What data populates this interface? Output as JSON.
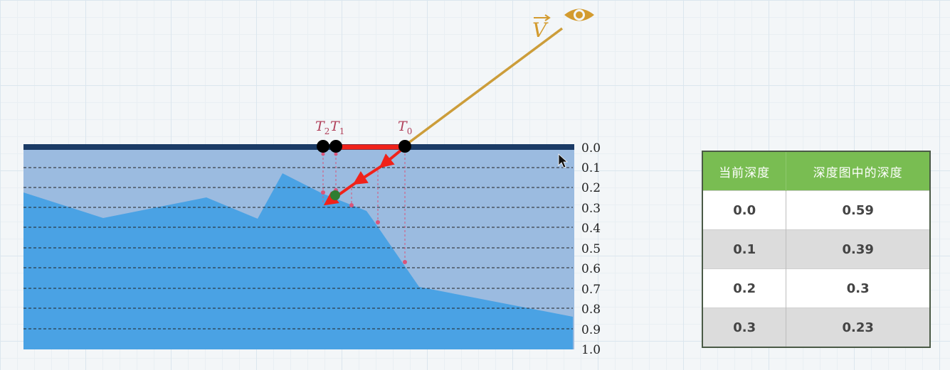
{
  "depth_labels": [
    "0.0",
    "0.1",
    "0.2",
    "0.3",
    "0.4",
    "0.5",
    "0.6",
    "0.7",
    "0.8",
    "0.9",
    "1.0"
  ],
  "points": {
    "t0": {
      "base": "T",
      "sub": "0"
    },
    "t1": {
      "base": "T",
      "sub": "1"
    },
    "t2": {
      "base": "T",
      "sub": "2"
    }
  },
  "view_vector_label": "V",
  "icons": [
    "eye-icon",
    "cursor-icon"
  ],
  "colors": {
    "surface": "#1b3b66",
    "band": "#9bbbe0",
    "terrain": "#4aa2e4",
    "ray": "#cc9d3a",
    "marcher": "#f0221a",
    "guide": "#d9557a",
    "table_header": "#79bd52"
  },
  "table": {
    "headers": [
      "当前深度",
      "深度图中的深度"
    ],
    "rows": [
      {
        "current": "0.0",
        "map": "0.59"
      },
      {
        "current": "0.1",
        "map": "0.39"
      },
      {
        "current": "0.2",
        "map": "0.3"
      },
      {
        "current": "0.3",
        "map": "0.23"
      }
    ]
  }
}
